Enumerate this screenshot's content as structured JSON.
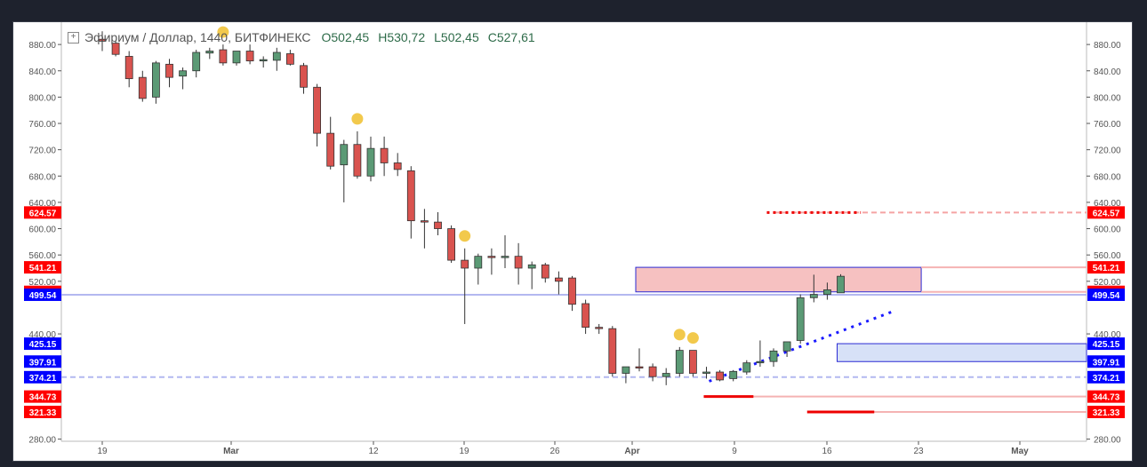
{
  "header": {
    "symbol_title": "Эфириум / Доллар, 1440, БИТФИНЕКС",
    "open": "O502,45",
    "high": "H530,72",
    "low": "L502,45",
    "close": "C527,61",
    "expand_icon": "plus-square-icon"
  },
  "colors": {
    "up": "#5b9a75",
    "down": "#d9534f",
    "red_label": "#ff0000",
    "blue_label": "#0000ff",
    "marker": "#f2c94c"
  },
  "chart_data": {
    "type": "candlestick",
    "x_ticks": [
      "19",
      "Mar",
      "12",
      "19",
      "26",
      "Apr",
      "9",
      "16",
      "23",
      "May"
    ],
    "y_ticks": [
      "880.00",
      "840.00",
      "800.00",
      "760.00",
      "720.00",
      "680.00",
      "640.00",
      "600.00",
      "560.00",
      "520.00",
      "440.00",
      "280.00"
    ],
    "ylim": [
      270,
      900
    ],
    "candles": [
      {
        "o": 888,
        "h": 900,
        "l": 870,
        "c": 885
      },
      {
        "o": 882,
        "h": 885,
        "l": 862,
        "c": 865
      },
      {
        "o": 862,
        "h": 870,
        "l": 815,
        "c": 828
      },
      {
        "o": 830,
        "h": 840,
        "l": 793,
        "c": 798
      },
      {
        "o": 800,
        "h": 855,
        "l": 790,
        "c": 852
      },
      {
        "o": 850,
        "h": 858,
        "l": 815,
        "c": 830
      },
      {
        "o": 832,
        "h": 845,
        "l": 812,
        "c": 840
      },
      {
        "o": 840,
        "h": 872,
        "l": 830,
        "c": 868
      },
      {
        "o": 867,
        "h": 875,
        "l": 858,
        "c": 870
      },
      {
        "o": 872,
        "h": 880,
        "l": 848,
        "c": 852
      },
      {
        "o": 852,
        "h": 868,
        "l": 848,
        "c": 870
      },
      {
        "o": 870,
        "h": 880,
        "l": 850,
        "c": 855
      },
      {
        "o": 855,
        "h": 862,
        "l": 845,
        "c": 857
      },
      {
        "o": 856,
        "h": 875,
        "l": 840,
        "c": 868
      },
      {
        "o": 866,
        "h": 872,
        "l": 848,
        "c": 850
      },
      {
        "o": 848,
        "h": 852,
        "l": 805,
        "c": 815
      },
      {
        "o": 815,
        "h": 820,
        "l": 725,
        "c": 745
      },
      {
        "o": 745,
        "h": 770,
        "l": 690,
        "c": 695
      },
      {
        "o": 697,
        "h": 735,
        "l": 640,
        "c": 728
      },
      {
        "o": 728,
        "h": 748,
        "l": 676,
        "c": 680
      },
      {
        "o": 680,
        "h": 740,
        "l": 672,
        "c": 722
      },
      {
        "o": 722,
        "h": 740,
        "l": 680,
        "c": 700
      },
      {
        "o": 700,
        "h": 715,
        "l": 680,
        "c": 690
      },
      {
        "o": 688,
        "h": 695,
        "l": 585,
        "c": 612
      },
      {
        "o": 612,
        "h": 630,
        "l": 570,
        "c": 610
      },
      {
        "o": 610,
        "h": 625,
        "l": 590,
        "c": 600
      },
      {
        "o": 600,
        "h": 605,
        "l": 548,
        "c": 552
      },
      {
        "o": 552,
        "h": 570,
        "l": 455,
        "c": 540
      },
      {
        "o": 540,
        "h": 562,
        "l": 515,
        "c": 558
      },
      {
        "o": 558,
        "h": 570,
        "l": 530,
        "c": 556
      },
      {
        "o": 556,
        "h": 590,
        "l": 540,
        "c": 558
      },
      {
        "o": 558,
        "h": 578,
        "l": 515,
        "c": 540
      },
      {
        "o": 540,
        "h": 550,
        "l": 508,
        "c": 545
      },
      {
        "o": 545,
        "h": 548,
        "l": 518,
        "c": 525
      },
      {
        "o": 525,
        "h": 535,
        "l": 500,
        "c": 520
      },
      {
        "o": 525,
        "h": 528,
        "l": 475,
        "c": 485
      },
      {
        "o": 486,
        "h": 492,
        "l": 440,
        "c": 450
      },
      {
        "o": 450,
        "h": 455,
        "l": 440,
        "c": 448
      },
      {
        "o": 448,
        "h": 452,
        "l": 375,
        "c": 380
      },
      {
        "o": 380,
        "h": 390,
        "l": 365,
        "c": 390
      },
      {
        "o": 390,
        "h": 418,
        "l": 383,
        "c": 388
      },
      {
        "o": 390,
        "h": 395,
        "l": 368,
        "c": 375
      },
      {
        "o": 375,
        "h": 388,
        "l": 362,
        "c": 380
      },
      {
        "o": 380,
        "h": 420,
        "l": 375,
        "c": 415
      },
      {
        "o": 415,
        "h": 415,
        "l": 375,
        "c": 380
      },
      {
        "o": 380,
        "h": 390,
        "l": 372,
        "c": 382
      },
      {
        "o": 382,
        "h": 385,
        "l": 368,
        "c": 370
      },
      {
        "o": 372,
        "h": 385,
        "l": 368,
        "c": 383
      },
      {
        "o": 382,
        "h": 400,
        "l": 378,
        "c": 396
      },
      {
        "o": 396,
        "h": 430,
        "l": 390,
        "c": 398
      },
      {
        "o": 398,
        "h": 418,
        "l": 390,
        "c": 414
      },
      {
        "o": 414,
        "h": 428,
        "l": 405,
        "c": 428
      },
      {
        "o": 430,
        "h": 500,
        "l": 425,
        "c": 495
      },
      {
        "o": 495,
        "h": 530,
        "l": 488,
        "c": 500
      },
      {
        "o": 500,
        "h": 518,
        "l": 492,
        "c": 507
      },
      {
        "o": 502.45,
        "h": 530.72,
        "l": 502.45,
        "c": 527.61
      }
    ],
    "price_labels": [
      {
        "value": 624.57,
        "label": "624.57",
        "kind": "red"
      },
      {
        "value": 541.21,
        "label": "541.21",
        "kind": "red"
      },
      {
        "value": 503.9,
        "label": "503.90",
        "kind": "red"
      },
      {
        "value": 499.54,
        "label": "499.54",
        "kind": "blue"
      },
      {
        "value": 425.15,
        "label": "425.15",
        "kind": "blue"
      },
      {
        "value": 397.91,
        "label": "397.91",
        "kind": "blue"
      },
      {
        "value": 374.21,
        "label": "374.21",
        "kind": "blue"
      },
      {
        "value": 344.73,
        "label": "344.73",
        "kind": "red"
      },
      {
        "value": 321.33,
        "label": "321.33",
        "kind": "red"
      }
    ],
    "marker_candles": [
      9,
      19,
      27,
      43,
      44
    ],
    "zones": [
      {
        "from": 503.9,
        "to": 541.21,
        "color": "red",
        "start_candle": 40
      },
      {
        "from": 397.91,
        "to": 425.15,
        "color": "blue",
        "start_candle": 55
      }
    ],
    "trend_line": {
      "from_candle": 45,
      "from_value": 368,
      "to_candle": 59,
      "to_value": 475
    },
    "grid": false
  }
}
